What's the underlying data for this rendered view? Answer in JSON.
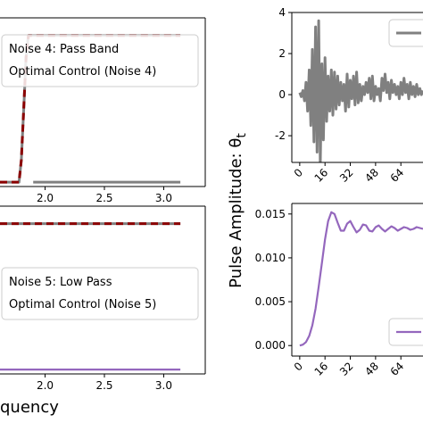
{
  "colors": {
    "gray": "#808080",
    "dark_red": "#8b0000",
    "purple": "#9467bd"
  },
  "shared": {
    "right_ylabel": "Pulse Amplitude: θ",
    "right_ylabel_sub": "t",
    "left_xlabel": "quency"
  },
  "chart_data": [
    {
      "id": "left-top",
      "type": "line",
      "xlim": [
        1.62,
        3.35
      ],
      "ylim": [
        -0.03,
        1.12
      ],
      "xticks": [
        "2.0",
        "2.5",
        "3.0"
      ],
      "legend": [
        "Noise 4: Pass Band",
        "Optimal Control (Noise 4)"
      ],
      "series": [
        {
          "name": "Noise 4: Pass Band",
          "style": "gray-solid",
          "x": [
            1.62,
            1.78,
            1.8,
            1.82,
            1.84,
            1.86,
            1.88,
            1.9,
            3.14
          ],
          "y": [
            0,
            0,
            0.15,
            0.5,
            0.85,
            1.0,
            1.0,
            1.0,
            1.0
          ]
        },
        {
          "name": "Optimal Control (Noise 4)",
          "style": "darkred-dashed",
          "x": [
            1.62,
            1.78,
            1.8,
            1.82,
            1.84,
            1.86,
            1.88,
            1.9,
            3.14
          ],
          "y": [
            0,
            0,
            0.15,
            0.5,
            0.85,
            1.0,
            1.0,
            1.0,
            1.0
          ]
        },
        {
          "name": "",
          "style": "gray-solid",
          "x": [
            1.9,
            3.14
          ],
          "y": [
            0,
            0
          ]
        }
      ]
    },
    {
      "id": "left-bottom",
      "type": "line",
      "xlim": [
        1.62,
        3.35
      ],
      "ylim": [
        -0.03,
        1.12
      ],
      "xticks": [
        "2.0",
        "2.5",
        "3.0"
      ],
      "xlabel": "quency",
      "legend": [
        "Noise 5: Low Pass",
        "Optimal Control (Noise 5)"
      ],
      "series": [
        {
          "name": "Noise 5: Low Pass",
          "style": "gray-solid",
          "x": [
            1.62,
            3.14
          ],
          "y": [
            1.0,
            1.0
          ]
        },
        {
          "name": "Optimal Control (Noise 5)",
          "style": "darkred-dashed",
          "x": [
            1.62,
            3.14
          ],
          "y": [
            1.0,
            1.0
          ]
        },
        {
          "name": "",
          "style": "purple-solid",
          "x": [
            1.62,
            3.14
          ],
          "y": [
            0,
            0
          ]
        }
      ]
    },
    {
      "id": "right-top",
      "type": "line",
      "xlim": [
        -5,
        78
      ],
      "ylim": [
        -3.3,
        4.0
      ],
      "yticks": [
        4,
        2,
        0,
        -2
      ],
      "xticks": [
        "0",
        "16",
        "32",
        "48",
        "64"
      ],
      "series": [
        {
          "name": "",
          "style": "gray-solid",
          "x": [
            0,
            1,
            2,
            3,
            4,
            5,
            6,
            7,
            8,
            9,
            10,
            11,
            12,
            13,
            14,
            15,
            16,
            17,
            18,
            19,
            20,
            21,
            22,
            23,
            24,
            25,
            26,
            27,
            28,
            29,
            30,
            31,
            32,
            33,
            34,
            35,
            36,
            37,
            38,
            39,
            40,
            41,
            42,
            43,
            44,
            45,
            46,
            47,
            48,
            49,
            50,
            51,
            52,
            53,
            54,
            55,
            56,
            57,
            58,
            59,
            60,
            61,
            62,
            63,
            64,
            65,
            66,
            67,
            68,
            69,
            70,
            71,
            72,
            73,
            74,
            75,
            76,
            77,
            78
          ],
          "y": [
            0.1,
            -0.1,
            0.2,
            -0.3,
            0.6,
            -0.8,
            1.2,
            -1.5,
            2.2,
            -2.3,
            3.3,
            -2.8,
            3.6,
            -3.4,
            1.5,
            -2.2,
            1.8,
            -1.3,
            0.9,
            -0.8,
            1.2,
            -1.0,
            1.1,
            -0.7,
            0.9,
            -0.5,
            0.6,
            -0.3,
            0.5,
            -0.8,
            1.0,
            -0.6,
            0.7,
            -0.2,
            0.9,
            -0.5,
            1.1,
            -0.4,
            0.5,
            -0.3,
            0.4,
            0.0,
            0.6,
            0.1,
            0.8,
            -0.2,
            0.9,
            -0.3,
            0.4,
            0.0,
            0.3,
            -0.3,
            0.8,
            0.2,
            1.0,
            0.1,
            0.6,
            -0.2,
            0.7,
            0.1,
            0.5,
            0.0,
            0.4,
            -0.2,
            0.6,
            0.0,
            0.8,
            0.1,
            0.5,
            -0.2,
            0.6,
            0.0,
            0.4,
            -0.1,
            0.5,
            0.0,
            0.3,
            0.0,
            0.2
          ]
        }
      ]
    },
    {
      "id": "right-bottom",
      "type": "line",
      "xlim": [
        -5,
        78
      ],
      "ylim": [
        -0.0012,
        0.0162
      ],
      "yticks": [
        "0.015",
        "0.010",
        "0.005",
        "0.000"
      ],
      "ytick_values": [
        0.015,
        0.01,
        0.005,
        0.0
      ],
      "xticks": [
        "0",
        "16",
        "32",
        "48",
        "64"
      ],
      "series": [
        {
          "name": "",
          "style": "purple-solid",
          "x": [
            0,
            2,
            4,
            6,
            8,
            10,
            12,
            14,
            16,
            18,
            20,
            22,
            24,
            26,
            28,
            30,
            32,
            34,
            36,
            38,
            40,
            42,
            44,
            46,
            48,
            50,
            52,
            54,
            56,
            58,
            60,
            62,
            64,
            66,
            68,
            70,
            72,
            74,
            76,
            78
          ],
          "y": [
            0,
            0.0001,
            0.0004,
            0.0011,
            0.0023,
            0.0042,
            0.0067,
            0.0094,
            0.0121,
            0.0142,
            0.0152,
            0.015,
            0.014,
            0.0131,
            0.0131,
            0.0139,
            0.0142,
            0.0135,
            0.0129,
            0.0132,
            0.0138,
            0.0137,
            0.0131,
            0.013,
            0.0135,
            0.0137,
            0.0133,
            0.013,
            0.0133,
            0.0136,
            0.0134,
            0.0131,
            0.0133,
            0.0135,
            0.0134,
            0.0132,
            0.0133,
            0.0135,
            0.0134,
            0.0133
          ]
        }
      ]
    }
  ]
}
